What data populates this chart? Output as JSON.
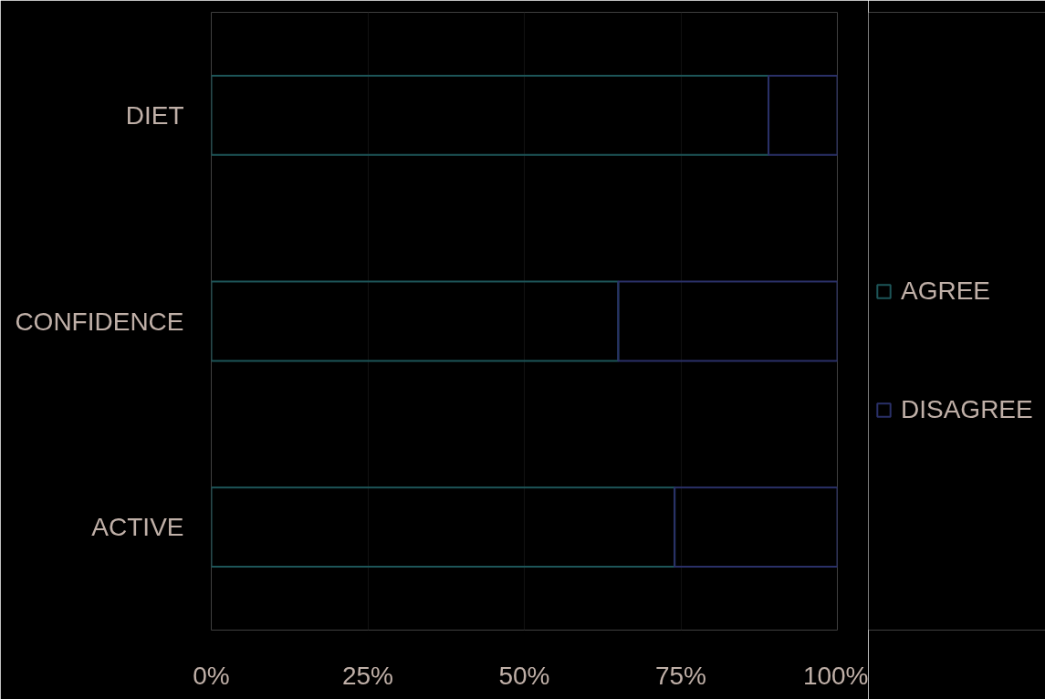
{
  "chart_data": {
    "type": "bar",
    "orientation": "horizontal",
    "stacked": true,
    "categories": [
      "DIET",
      "CONFIDENCE",
      "ACTIVE"
    ],
    "series": [
      {
        "name": "AGREE",
        "color": "#1d5558",
        "values": [
          89,
          65,
          74
        ]
      },
      {
        "name": "DISAGREE",
        "color": "#2a3068",
        "values": [
          11,
          35,
          26
        ]
      }
    ],
    "xlim": [
      0,
      100
    ],
    "xticks": [
      {
        "value": 0,
        "label": "0%"
      },
      {
        "value": 25,
        "label": "25%"
      },
      {
        "value": 50,
        "label": "50%"
      },
      {
        "value": 75,
        "label": "75%"
      },
      {
        "value": 100,
        "label": "100%"
      }
    ],
    "grid": "x",
    "legend": "right"
  }
}
